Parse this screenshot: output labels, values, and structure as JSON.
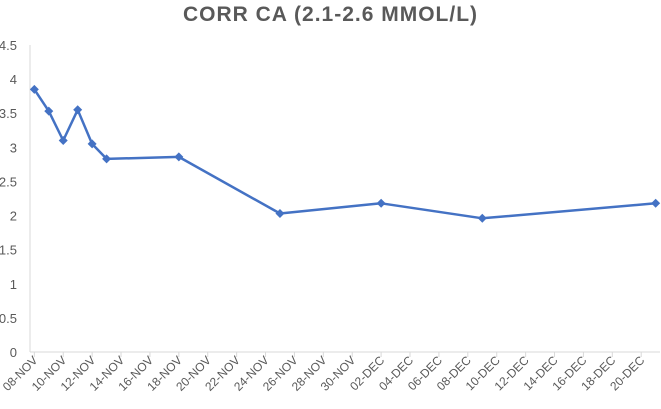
{
  "chart_data": {
    "type": "line",
    "title": "CORR CA (2.1-2.6 MMOL/L)",
    "xlabel": "",
    "ylabel": "",
    "ylim": [
      0,
      4.5
    ],
    "yticks": [
      "0",
      "0.5",
      "1",
      "1.5",
      "2",
      "2.5",
      "3",
      "3.5",
      "4",
      "4.5"
    ],
    "xticks": [
      "08-NOV",
      "10-NOV",
      "12-NOV",
      "14-NOV",
      "16-NOV",
      "18-NOV",
      "20-NOV",
      "22-NOV",
      "24-NOV",
      "26-NOV",
      "28-NOV",
      "30-NOV",
      "02-DEC",
      "04-DEC",
      "06-DEC",
      "08-DEC",
      "10-DEC",
      "12-DEC",
      "14-DEC",
      "16-DEC",
      "18-DEC",
      "20-DEC"
    ],
    "x_dates": [
      "08-NOV",
      "09-NOV",
      "10-NOV",
      "11-NOV",
      "12-NOV",
      "13-NOV",
      "18-NOV",
      "25-NOV",
      "02-DEC",
      "09-DEC",
      "21-DEC"
    ],
    "values": [
      3.85,
      3.53,
      3.1,
      3.55,
      3.05,
      2.83,
      2.86,
      2.03,
      2.18,
      1.96,
      2.18
    ],
    "grid": false,
    "legend": "none",
    "series_color": "#4472C4",
    "marker": "diamond"
  }
}
